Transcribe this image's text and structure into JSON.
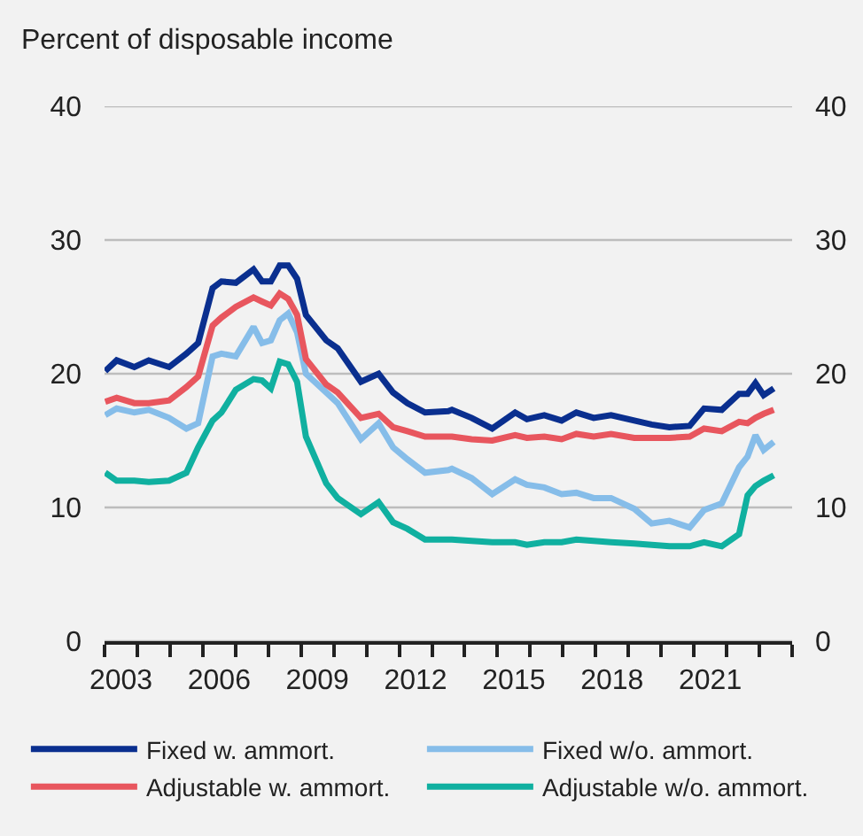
{
  "chart_data": {
    "type": "line",
    "title": "Percent of disposable income",
    "xlim": [
      2003,
      2024
    ],
    "xticks": [
      {
        "value": 2003,
        "label": null
      },
      {
        "value": 2004,
        "label": null
      },
      {
        "value": 2005,
        "label": null
      },
      {
        "value": 2006,
        "label": null
      },
      {
        "value": 2007,
        "label": null
      },
      {
        "value": 2008,
        "label": null
      },
      {
        "value": 2009,
        "label": null
      },
      {
        "value": 2010,
        "label": null
      },
      {
        "value": 2011,
        "label": null
      },
      {
        "value": 2012,
        "label": null
      },
      {
        "value": 2013,
        "label": null
      },
      {
        "value": 2014,
        "label": null
      },
      {
        "value": 2015,
        "label": null
      },
      {
        "value": 2016,
        "label": null
      },
      {
        "value": 2017,
        "label": null
      },
      {
        "value": 2018,
        "label": null
      },
      {
        "value": 2019,
        "label": null
      },
      {
        "value": 2020,
        "label": null
      },
      {
        "value": 2021,
        "label": null
      },
      {
        "value": 2022,
        "label": null
      },
      {
        "value": 2023,
        "label": null
      },
      {
        "value": 2024,
        "label": null
      },
      {
        "value": 2003.5,
        "label": "2003"
      },
      {
        "value": 2006.5,
        "label": "2006"
      },
      {
        "value": 2009.5,
        "label": "2009"
      },
      {
        "value": 2012.5,
        "label": "2012"
      },
      {
        "value": 2015.5,
        "label": "2015"
      },
      {
        "value": 2018.5,
        "label": "2018"
      },
      {
        "value": 2021.5,
        "label": "2021"
      }
    ],
    "x": [
      2003.02,
      2003.37,
      2003.91,
      2004.35,
      2004.97,
      2005.5,
      2005.86,
      2006.3,
      2006.57,
      2007.01,
      2007.55,
      2007.81,
      2008.08,
      2008.35,
      2008.61,
      2008.88,
      2009.15,
      2009.77,
      2010.12,
      2010.83,
      2011.37,
      2011.81,
      2012.25,
      2012.79,
      2013.5,
      2013.61,
      2014.21,
      2014.84,
      2015.54,
      2015.9,
      2016.43,
      2016.96,
      2017.41,
      2017.94,
      2018.47,
      2019.18,
      2019.71,
      2020.25,
      2020.87,
      2021.31,
      2021.85,
      2022.38,
      2022.64,
      2022.88,
      2023.13,
      2023.44
    ],
    "ylim": [
      0,
      40
    ],
    "yticks": [
      0,
      10,
      20,
      30,
      40
    ],
    "y2lim": [
      0,
      40
    ],
    "y2ticks": [
      0,
      10,
      20,
      30,
      40
    ],
    "grid": "y",
    "legend": "bottom",
    "marker": "none",
    "line_style": "solid",
    "series": [
      {
        "name": "Fixed w. ammort.",
        "color": "#0a2f8f",
        "values": [
          20.2,
          21.0,
          20.5,
          21.0,
          20.5,
          21.5,
          22.3,
          26.4,
          26.9,
          26.8,
          27.8,
          26.9,
          26.9,
          28.1,
          28.1,
          27.1,
          24.4,
          22.5,
          21.9,
          19.4,
          20.0,
          18.6,
          17.8,
          17.1,
          17.2,
          17.3,
          16.7,
          15.9,
          17.1,
          16.6,
          16.9,
          16.5,
          17.1,
          16.7,
          16.9,
          16.5,
          16.2,
          16.0,
          16.1,
          17.4,
          17.3,
          18.5,
          18.5,
          19.3,
          18.4,
          18.9
        ]
      },
      {
        "name": "Fixed w/o. ammort.",
        "color": "#86bde9",
        "values": [
          16.9,
          17.4,
          17.1,
          17.3,
          16.7,
          15.9,
          16.3,
          21.3,
          21.5,
          21.3,
          23.5,
          22.3,
          22.5,
          24.0,
          24.5,
          23.1,
          20.0,
          18.6,
          17.8,
          15.1,
          16.3,
          14.5,
          13.6,
          12.6,
          12.8,
          12.9,
          12.2,
          11.0,
          12.1,
          11.7,
          11.5,
          11.0,
          11.1,
          10.7,
          10.7,
          9.9,
          8.8,
          9.0,
          8.5,
          9.8,
          10.3,
          13.0,
          13.8,
          15.4,
          14.3,
          14.9
        ]
      },
      {
        "name": "Adjustable w. ammort.",
        "color": "#e8565e",
        "values": [
          17.9,
          18.2,
          17.8,
          17.8,
          18.0,
          19.0,
          19.8,
          23.6,
          24.2,
          25.0,
          25.7,
          25.4,
          25.1,
          26.0,
          25.6,
          24.4,
          21.1,
          19.2,
          18.6,
          16.7,
          17.0,
          16.0,
          15.7,
          15.3,
          15.3,
          15.3,
          15.1,
          15.0,
          15.4,
          15.2,
          15.3,
          15.1,
          15.5,
          15.3,
          15.5,
          15.2,
          15.2,
          15.2,
          15.3,
          15.9,
          15.7,
          16.4,
          16.3,
          16.7,
          17.0,
          17.3
        ]
      },
      {
        "name": "Adjustable w/o. ammort.",
        "color": "#10b0a0",
        "values": [
          12.6,
          12.0,
          12.0,
          11.9,
          12.0,
          12.6,
          14.5,
          16.5,
          17.1,
          18.8,
          19.6,
          19.5,
          18.9,
          20.9,
          20.7,
          19.4,
          15.3,
          11.8,
          10.7,
          9.5,
          10.4,
          8.9,
          8.4,
          7.6,
          7.6,
          7.6,
          7.5,
          7.4,
          7.4,
          7.2,
          7.4,
          7.4,
          7.6,
          7.5,
          7.4,
          7.3,
          7.2,
          7.1,
          7.1,
          7.4,
          7.1,
          8.0,
          10.9,
          11.6,
          12.0,
          12.4
        ]
      }
    ]
  }
}
